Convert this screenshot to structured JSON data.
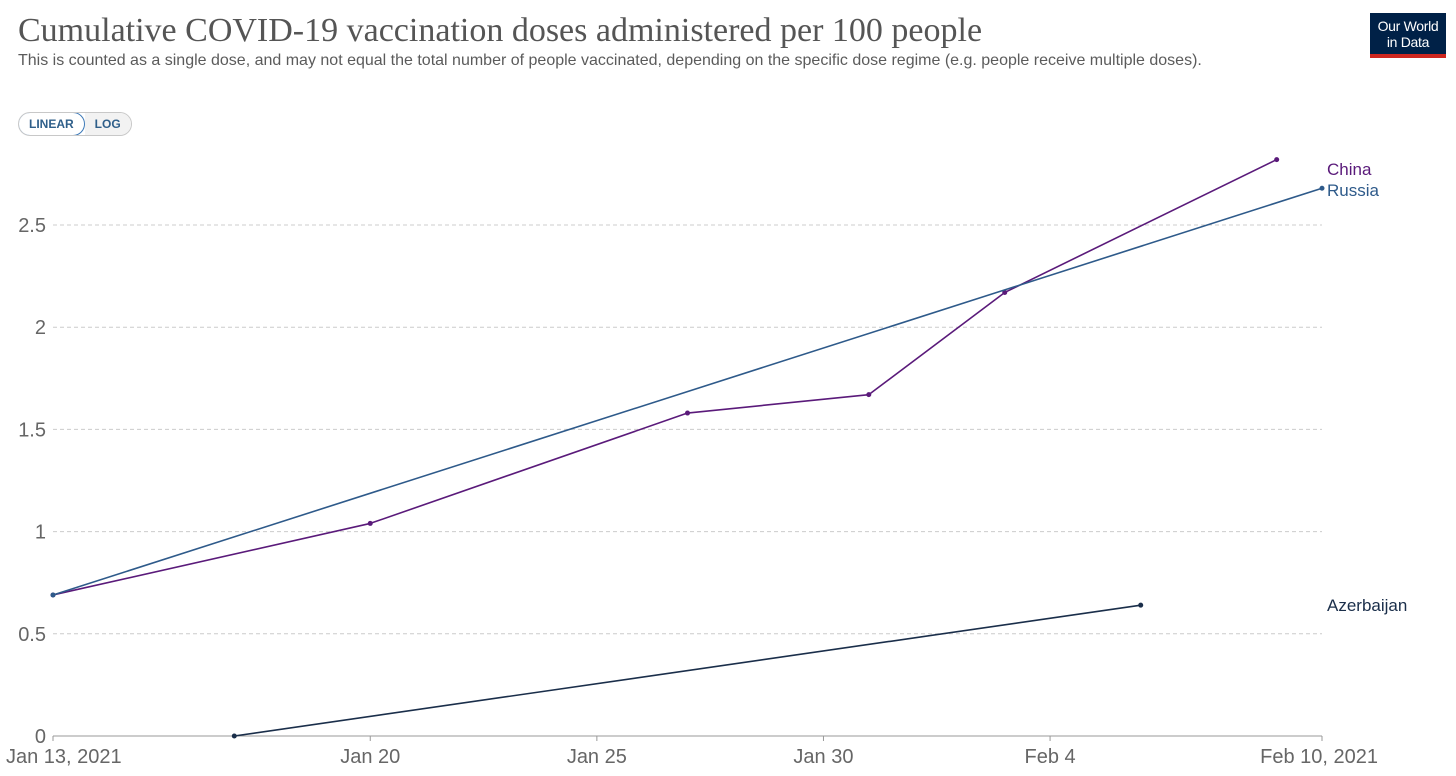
{
  "header": {
    "title": "Cumulative COVID-19 vaccination doses administered per 100 people",
    "subtitle": "This is counted as a single dose, and may not equal the total number of people vaccinated, depending on the specific dose regime (e.g. people receive multiple doses).",
    "logo_line1": "Our World",
    "logo_line2": "in Data"
  },
  "controls": {
    "linear_label": "LINEAR",
    "log_label": "LOG",
    "active": "linear"
  },
  "colors": {
    "China": "#5a1a7a",
    "Russia": "#2e5a8a",
    "Azerbaijan": "#1a2e4a",
    "grid": "#cccccc",
    "axis": "#999999",
    "tick_text": "#666666"
  },
  "chart_data": {
    "type": "line",
    "title": "Cumulative COVID-19 vaccination doses administered per 100 people",
    "xlabel": "",
    "ylabel": "",
    "x_type": "date",
    "xlim": [
      "2021-01-13",
      "2021-02-10"
    ],
    "ylim": [
      0,
      2.8
    ],
    "y_ticks": [
      {
        "value": 0,
        "label": "0"
      },
      {
        "value": 0.5,
        "label": "0.5"
      },
      {
        "value": 1,
        "label": "1"
      },
      {
        "value": 1.5,
        "label": "1.5"
      },
      {
        "value": 2,
        "label": "2"
      },
      {
        "value": 2.5,
        "label": "2.5"
      }
    ],
    "x_ticks": [
      {
        "value": "2021-01-13",
        "label": "Jan 13, 2021"
      },
      {
        "value": "2021-01-20",
        "label": "Jan 20"
      },
      {
        "value": "2021-01-25",
        "label": "Jan 25"
      },
      {
        "value": "2021-01-30",
        "label": "Jan 30"
      },
      {
        "value": "2021-02-04",
        "label": "Feb 4"
      },
      {
        "value": "2021-02-10",
        "label": "Feb 10, 2021"
      }
    ],
    "grid": "horizontal dashed",
    "legend": "line-end labels on the right",
    "series": [
      {
        "name": "China",
        "points": [
          {
            "x": "2021-01-13",
            "y": 0.69
          },
          {
            "x": "2021-01-20",
            "y": 1.04
          },
          {
            "x": "2021-01-27",
            "y": 1.58
          },
          {
            "x": "2021-01-31",
            "y": 1.67
          },
          {
            "x": "2021-02-03",
            "y": 2.17
          },
          {
            "x": "2021-02-09",
            "y": 2.82
          }
        ]
      },
      {
        "name": "Russia",
        "points": [
          {
            "x": "2021-01-13",
            "y": 0.69
          },
          {
            "x": "2021-02-10",
            "y": 2.68
          }
        ]
      },
      {
        "name": "Azerbaijan",
        "points": [
          {
            "x": "2021-01-17",
            "y": 0.0
          },
          {
            "x": "2021-02-06",
            "y": 0.64
          }
        ]
      }
    ]
  }
}
